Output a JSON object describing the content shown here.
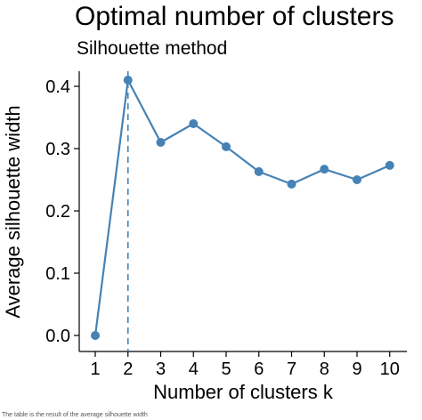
{
  "chart_data": {
    "type": "line",
    "title": "Optimal number of clusters",
    "subtitle": "Silhouette method",
    "xlabel": "Number of clusters k",
    "ylabel": "Average silhouette width",
    "x": [
      1,
      2,
      3,
      4,
      5,
      6,
      7,
      8,
      9,
      10
    ],
    "x_tick_labels": [
      "1",
      "2",
      "3",
      "4",
      "5",
      "6",
      "7",
      "8",
      "9",
      "10"
    ],
    "y_ticks": [
      0.0,
      0.1,
      0.2,
      0.3,
      0.4
    ],
    "y_tick_labels": [
      "0.0",
      "0.1",
      "0.2",
      "0.3",
      "0.4"
    ],
    "ylim": [
      0.0,
      0.41
    ],
    "series": [
      {
        "values": [
          0.0,
          0.41,
          0.31,
          0.34,
          0.303,
          0.263,
          0.243,
          0.267,
          0.25,
          0.273
        ],
        "color": "#4682B4"
      }
    ],
    "optimal_k": 2,
    "vline_color": "#4682B4",
    "grid": false
  },
  "caption": "The table is the result of the average silhouette width"
}
